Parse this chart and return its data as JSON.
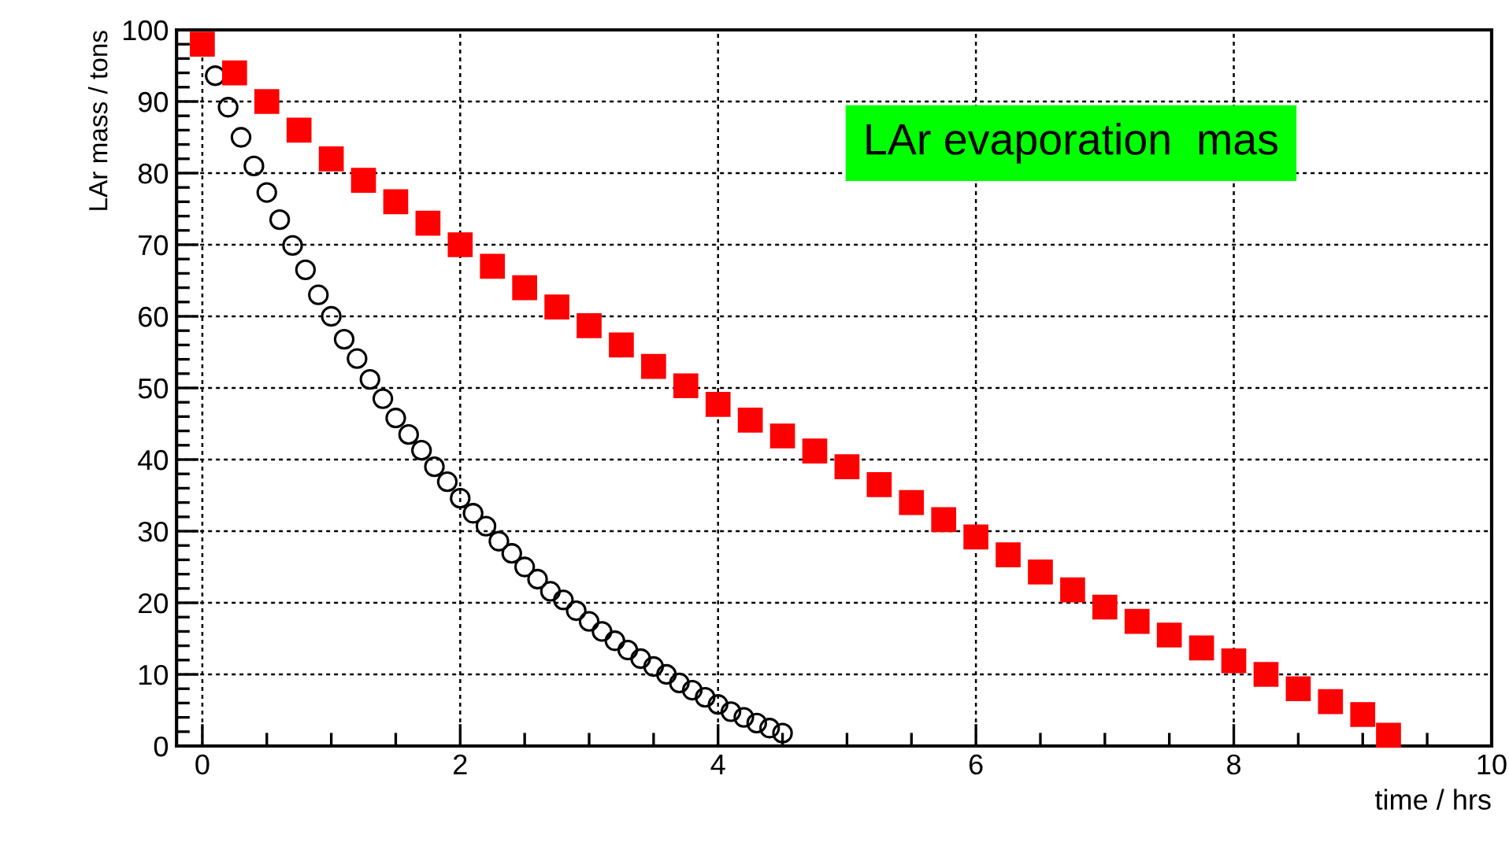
{
  "chart_data": {
    "type": "scatter",
    "xlabel": "time / hrs",
    "ylabel": "LAr mass / tons",
    "xlim": [
      -0.2,
      10
    ],
    "xticks": [
      0,
      2,
      4,
      6,
      8,
      10
    ],
    "ylim": [
      0,
      100
    ],
    "yticks": [
      0,
      10,
      20,
      30,
      40,
      50,
      60,
      70,
      80,
      90,
      100
    ],
    "grid": true,
    "annotations": [
      "LAr evaporation  mas"
    ],
    "series": [
      {
        "color": "#ff0000",
        "marker": "square",
        "x": [
          0,
          0.25,
          0.5,
          0.75,
          1,
          1.25,
          1.5,
          1.75,
          2,
          2.25,
          2.5,
          2.75,
          3,
          3.25,
          3.5,
          3.75,
          4,
          4.25,
          4.5,
          4.75,
          5,
          5.25,
          5.5,
          5.75,
          6,
          6.25,
          6.5,
          6.75,
          7,
          7.25,
          7.5,
          7.75,
          8,
          8.25,
          8.5,
          8.75,
          9,
          9.2
        ],
        "values": [
          98,
          94,
          90,
          86,
          82,
          79,
          76,
          73,
          70,
          67,
          64,
          61.3,
          58.7,
          56,
          53,
          50.3,
          47.7,
          45.5,
          43.3,
          41.2,
          39,
          36.5,
          34,
          31.6,
          29.2,
          26.7,
          24.3,
          21.8,
          19.4,
          17.4,
          15.5,
          13.7,
          11.9,
          10,
          8,
          6.2,
          4.4,
          1.5
        ]
      },
      {
        "color": "#000000",
        "marker": "circle",
        "x": [
          0.1,
          0.2,
          0.3,
          0.4,
          0.5,
          0.6,
          0.7,
          0.8,
          0.9,
          1.0,
          1.1,
          1.2,
          1.3,
          1.4,
          1.5,
          1.6,
          1.7,
          1.8,
          1.9,
          2.0,
          2.1,
          2.2,
          2.3,
          2.4,
          2.5,
          2.6,
          2.7,
          2.8,
          2.9,
          3.0,
          3.1,
          3.2,
          3.3,
          3.4,
          3.5,
          3.6,
          3.7,
          3.8,
          3.9,
          4.0,
          4.1,
          4.2,
          4.3,
          4.4,
          4.5
        ],
        "values": [
          93.6,
          89.2,
          85,
          81,
          77.3,
          73.5,
          69.9,
          66.5,
          63,
          60,
          56.8,
          54.1,
          51.2,
          48.5,
          45.8,
          43.5,
          41.3,
          39,
          36.9,
          34.6,
          32.5,
          30.7,
          28.6,
          26.9,
          25,
          23.3,
          21.6,
          20.4,
          18.9,
          17.4,
          16,
          14.7,
          13.4,
          12.2,
          11.1,
          10,
          8.8,
          7.8,
          6.8,
          5.8,
          4.8,
          4,
          3.2,
          2.5,
          1.8
        ]
      }
    ]
  }
}
